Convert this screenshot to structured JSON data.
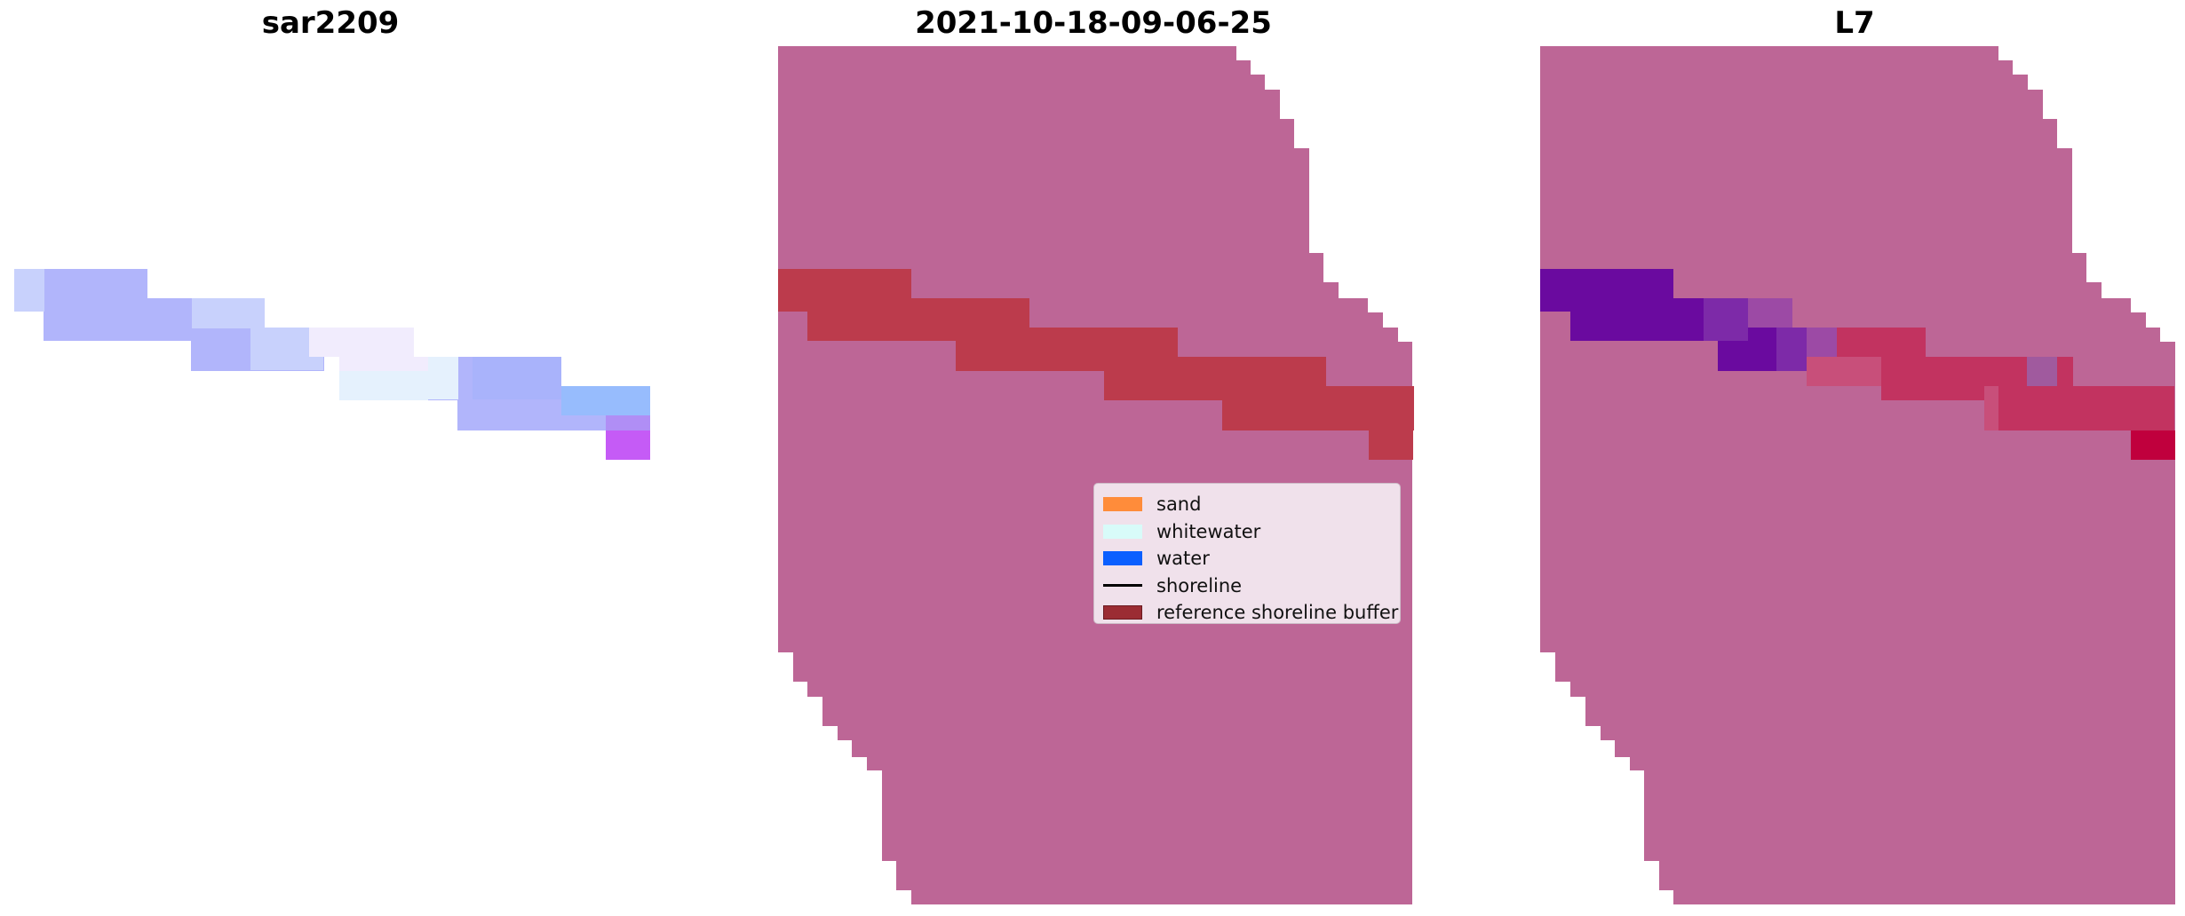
{
  "panels": [
    {
      "title": "sar2209"
    },
    {
      "title": "2021-10-18-09-06-25"
    },
    {
      "title": "L7"
    }
  ],
  "legend": {
    "placement": "center-right of middle panel",
    "items": [
      {
        "label": "sand",
        "color": "#ff8c3a"
      },
      {
        "label": "whitewater",
        "color": "#d8fbf9"
      },
      {
        "label": "water",
        "color": "#0b5fff"
      },
      {
        "label": "shoreline",
        "color": "#000000"
      },
      {
        "label": "reference shoreline buffer",
        "color": "#9b2c33"
      }
    ]
  },
  "colors": {
    "land_mask": "#bd6696",
    "reference_buffer": "#bc3b4c",
    "sar_blue": "#b1b5fb",
    "sar_magenta": "#c55bf6",
    "l7_purple": "#6a0a9f",
    "l7_red": "#c0003d"
  }
}
